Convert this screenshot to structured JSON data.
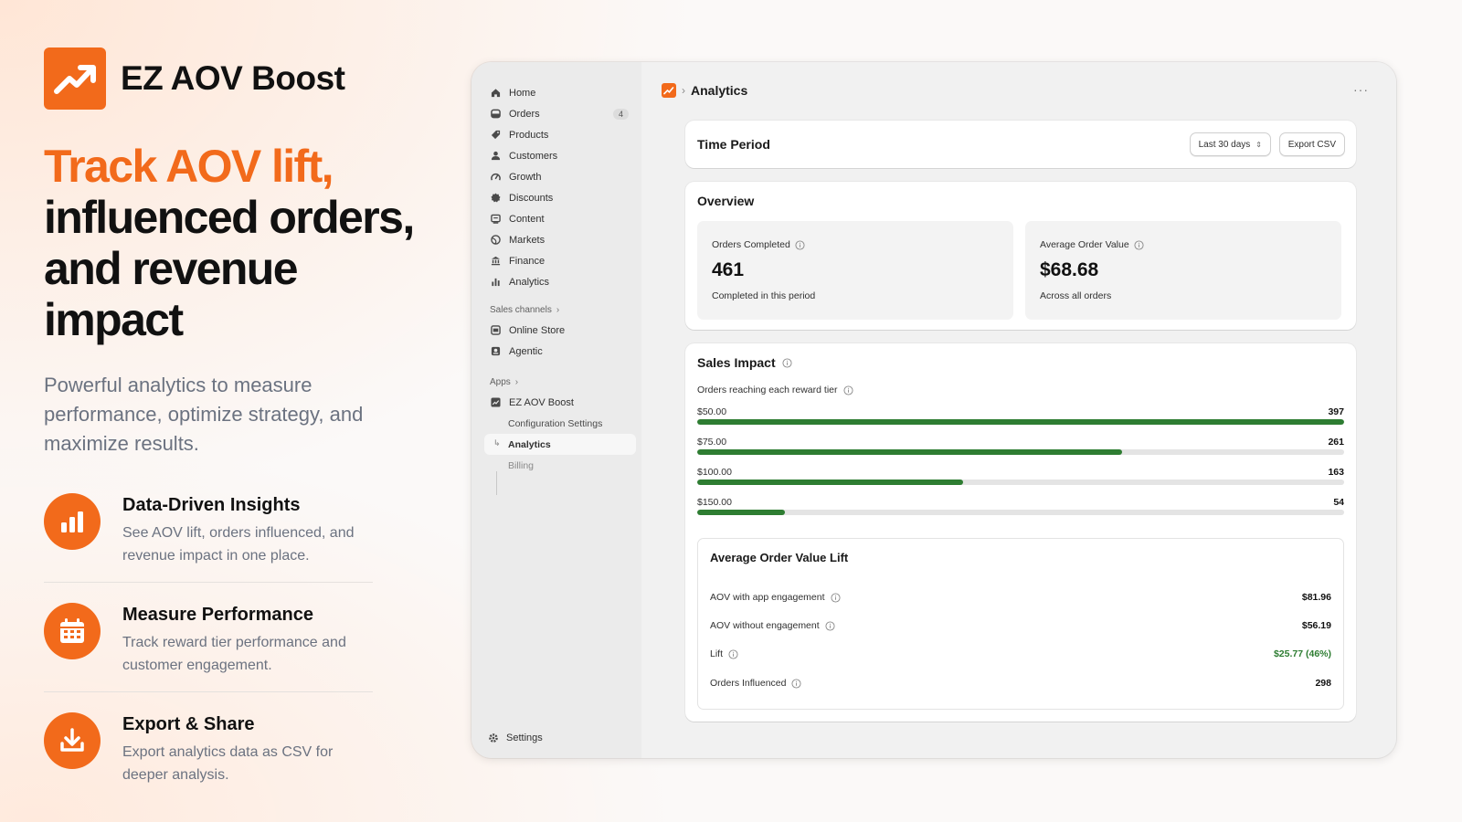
{
  "hero": {
    "brand_name": "EZ AOV Boost",
    "headline_accent": "Track AOV lift,",
    "headline_line2": "influenced orders,",
    "headline_line3": "and revenue impact",
    "subtitle": "Powerful analytics to measure performance, optimize strategy, and maximize results.",
    "features": [
      {
        "icon": "bar-chart-icon",
        "title": "Data-Driven Insights",
        "description": "See AOV lift, orders influenced, and revenue impact in one place."
      },
      {
        "icon": "calendar-icon",
        "title": "Measure Performance",
        "description": "Track reward tier performance and customer engagement."
      },
      {
        "icon": "download-icon",
        "title": "Export & Share",
        "description": "Export analytics data as CSV for deeper analysis."
      }
    ]
  },
  "sidebar": {
    "items": [
      {
        "label": "Home",
        "icon": "home-icon"
      },
      {
        "label": "Orders",
        "icon": "orders-icon",
        "badge": "4"
      },
      {
        "label": "Products",
        "icon": "tag-icon"
      },
      {
        "label": "Customers",
        "icon": "person-icon"
      },
      {
        "label": "Growth",
        "icon": "growth-icon"
      },
      {
        "label": "Discounts",
        "icon": "discount-icon"
      },
      {
        "label": "Content",
        "icon": "content-icon"
      },
      {
        "label": "Markets",
        "icon": "globe-icon"
      },
      {
        "label": "Finance",
        "icon": "bank-icon"
      },
      {
        "label": "Analytics",
        "icon": "analytics-icon"
      }
    ],
    "sales_channels_label": "Sales channels",
    "sales_channels": [
      {
        "label": "Online Store",
        "icon": "store-icon"
      },
      {
        "label": "Agentic",
        "icon": "agentic-icon"
      }
    ],
    "apps_label": "Apps",
    "app": {
      "label": "EZ AOV Boost",
      "icon": "app-icon"
    },
    "app_subitems": [
      {
        "label": "Configuration Settings"
      },
      {
        "label": "Analytics"
      },
      {
        "label": "Billing"
      }
    ],
    "settings_label": "Settings"
  },
  "topbar": {
    "breadcrumb_separator": "›",
    "page_title": "Analytics",
    "more_label": "···"
  },
  "time_period": {
    "label": "Time Period",
    "selected": "Last 30 days",
    "export_label": "Export CSV"
  },
  "overview": {
    "title": "Overview",
    "stats": [
      {
        "label": "Orders Completed",
        "value": "461",
        "sub": "Completed in this period"
      },
      {
        "label": "Average Order Value",
        "value": "$68.68",
        "sub": "Across all orders"
      }
    ]
  },
  "sales_impact": {
    "title": "Sales Impact",
    "tier_caption": "Orders reaching each reward tier",
    "max_count": 397,
    "tiers": [
      {
        "label": "$50.00",
        "count": 397
      },
      {
        "label": "$75.00",
        "count": 261
      },
      {
        "label": "$100.00",
        "count": 163
      },
      {
        "label": "$150.00",
        "count": 54
      }
    ],
    "bar_color": "#2e7d32"
  },
  "aov_lift": {
    "title": "Average Order Value Lift",
    "rows": [
      {
        "label": "AOV with app engagement",
        "value": "$81.96"
      },
      {
        "label": "AOV without engagement",
        "value": "$56.19"
      },
      {
        "label": "Lift",
        "value": "$25.77 (46%)"
      },
      {
        "label": "Orders Influenced",
        "value": "298"
      }
    ]
  },
  "colors": {
    "accent": "#f26a1b",
    "positive": "#2e7d32"
  }
}
